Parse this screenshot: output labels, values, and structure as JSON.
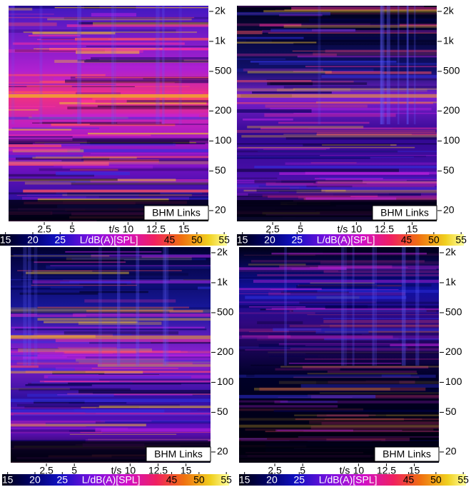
{
  "chart_data": [
    {
      "type": "spectrogram",
      "annotation": "BHM Links",
      "xlabel": "t/s",
      "xlim": [
        -0.7,
        17.2
      ],
      "xticks": [
        2.5,
        5,
        10,
        12.5,
        15
      ],
      "yscale": "log",
      "ylim": [
        15.6,
        2280
      ],
      "yticks": [
        20,
        50,
        100,
        200,
        500,
        {
          "value": 1000,
          "label": "1k"
        },
        {
          "value": 2000,
          "label": "2k"
        }
      ],
      "colorbar_label": "L/dB(A)[SPL]",
      "clim": [
        14,
        55.5
      ],
      "colorbar_ticks": [
        15,
        20,
        25,
        45,
        50,
        55
      ]
    },
    {
      "type": "spectrogram",
      "annotation": "BHM Links",
      "xlabel": "t/s",
      "xlim": [
        -0.7,
        17.2
      ],
      "xticks": [
        2.5,
        5,
        10,
        12.5,
        15
      ],
      "yscale": "log",
      "ylim": [
        15.6,
        2280
      ],
      "yticks": [
        20,
        50,
        100,
        200,
        500,
        {
          "value": 1000,
          "label": "1k"
        },
        {
          "value": 2000,
          "label": "2k"
        }
      ],
      "colorbar_label": "L/dB(A)[SPL]",
      "clim": [
        14,
        55.5
      ],
      "colorbar_ticks": [
        15,
        20,
        25,
        45,
        50,
        55
      ]
    },
    {
      "type": "spectrogram",
      "annotation": "BHM Links",
      "xlabel": "t/s",
      "xlim": [
        -0.7,
        17.2
      ],
      "xticks": [
        2.5,
        5,
        10,
        12.5,
        15
      ],
      "yscale": "log",
      "ylim": [
        15.6,
        2280
      ],
      "yticks": [
        20,
        50,
        100,
        200,
        500,
        {
          "value": 1000,
          "label": "1k"
        },
        {
          "value": 2000,
          "label": "2k"
        }
      ],
      "colorbar_label": "L/dB(A)[SPL]",
      "clim": [
        14,
        55.5
      ],
      "colorbar_ticks": [
        15,
        20,
        25,
        45,
        50,
        55
      ]
    },
    {
      "type": "spectrogram",
      "annotation": "BHM Links",
      "xlabel": "t/s",
      "xlim": [
        -0.7,
        17.2
      ],
      "xticks": [
        2.5,
        5,
        10,
        12.5,
        15
      ],
      "yscale": "log",
      "ylim": [
        15.6,
        2280
      ],
      "yticks": [
        20,
        50,
        100,
        200,
        500,
        {
          "value": 1000,
          "label": "1k"
        },
        {
          "value": 2000,
          "label": "2k"
        }
      ],
      "colorbar_label": "L/dB(A)[SPL]",
      "clim": [
        14,
        55.5
      ],
      "colorbar_ticks": [
        15,
        20,
        25,
        45,
        50,
        55
      ]
    }
  ]
}
